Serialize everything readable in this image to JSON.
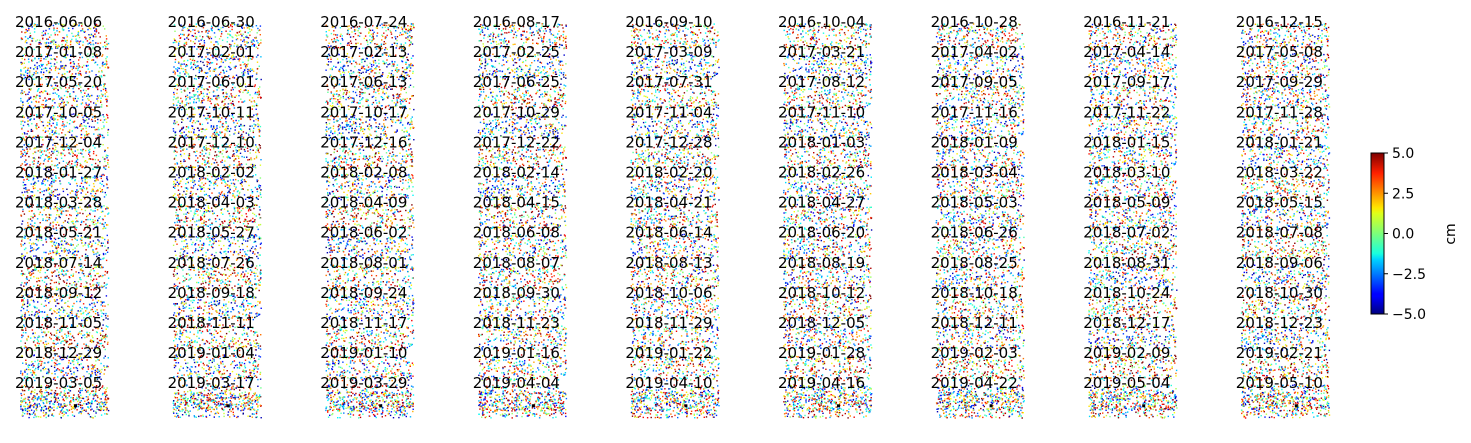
{
  "chart_data": {
    "type": "heatmap",
    "description_values": "time-series displacement map mosaic",
    "dates": [
      "2016-06-06",
      "2016-06-30",
      "2016-07-24",
      "2016-08-17",
      "2016-09-10",
      "2016-10-04",
      "2016-10-28",
      "2016-11-21",
      "2016-12-15",
      "2017-01-08",
      "2017-02-01",
      "2017-02-13",
      "2017-02-25",
      "2017-03-09",
      "2017-03-21",
      "2017-04-02",
      "2017-04-14",
      "2017-05-08",
      "2017-05-20",
      "2017-06-01",
      "2017-06-13",
      "2017-06-25",
      "2017-07-31",
      "2017-08-12",
      "2017-09-05",
      "2017-09-17",
      "2017-09-29",
      "2017-10-05",
      "2017-10-11",
      "2017-10-17",
      "2017-10-29",
      "2017-11-04",
      "2017-11-10",
      "2017-11-16",
      "2017-11-22",
      "2017-11-28",
      "2017-12-04",
      "2017-12-10",
      "2017-12-16",
      "2017-12-22",
      "2017-12-28",
      "2018-01-03",
      "2018-01-09",
      "2018-01-15",
      "2018-01-21",
      "2018-01-27",
      "2018-02-02",
      "2018-02-08",
      "2018-02-14",
      "2018-02-20",
      "2018-02-26",
      "2018-03-04",
      "2018-03-10",
      "2018-03-22",
      "2018-03-28",
      "2018-04-03",
      "2018-04-09",
      "2018-04-15",
      "2018-04-21",
      "2018-04-27",
      "2018-05-03",
      "2018-05-09",
      "2018-05-15",
      "2018-05-21",
      "2018-05-27",
      "2018-06-02",
      "2018-06-08",
      "2018-06-14",
      "2018-06-20",
      "2018-06-26",
      "2018-07-02",
      "2018-07-08",
      "2018-07-14",
      "2018-07-26",
      "2018-08-01",
      "2018-08-07",
      "2018-08-13",
      "2018-08-19",
      "2018-08-25",
      "2018-08-31",
      "2018-09-06",
      "2018-09-12",
      "2018-09-18",
      "2018-09-24",
      "2018-09-30",
      "2018-10-06",
      "2018-10-12",
      "2018-10-18",
      "2018-10-24",
      "2018-10-30",
      "2018-11-05",
      "2018-11-11",
      "2018-11-17",
      "2018-11-23",
      "2018-11-29",
      "2018-12-05",
      "2018-12-11",
      "2018-12-17",
      "2018-12-23",
      "2018-12-29",
      "2019-01-04",
      "2019-01-10",
      "2019-01-16",
      "2019-01-22",
      "2019-01-28",
      "2019-02-03",
      "2019-02-09",
      "2019-02-21",
      "2019-03-05",
      "2019-03-17",
      "2019-03-29",
      "2019-04-04",
      "2019-04-10",
      "2019-04-16",
      "2019-04-22",
      "2019-05-04",
      "2019-05-10"
    ],
    "columns": 9,
    "colormap": "jet",
    "colorbar": {
      "min": -5.0,
      "max": 5.0,
      "ticks": [
        "5.0",
        "2.5",
        "0.0",
        "−2.5",
        "−5.0"
      ],
      "tick_values": [
        5.0,
        2.5,
        0.0,
        -2.5,
        -5.0
      ],
      "label": "cm",
      "position": "right"
    },
    "reference_point_marker": "black dot",
    "grid": false,
    "axes": "off"
  }
}
